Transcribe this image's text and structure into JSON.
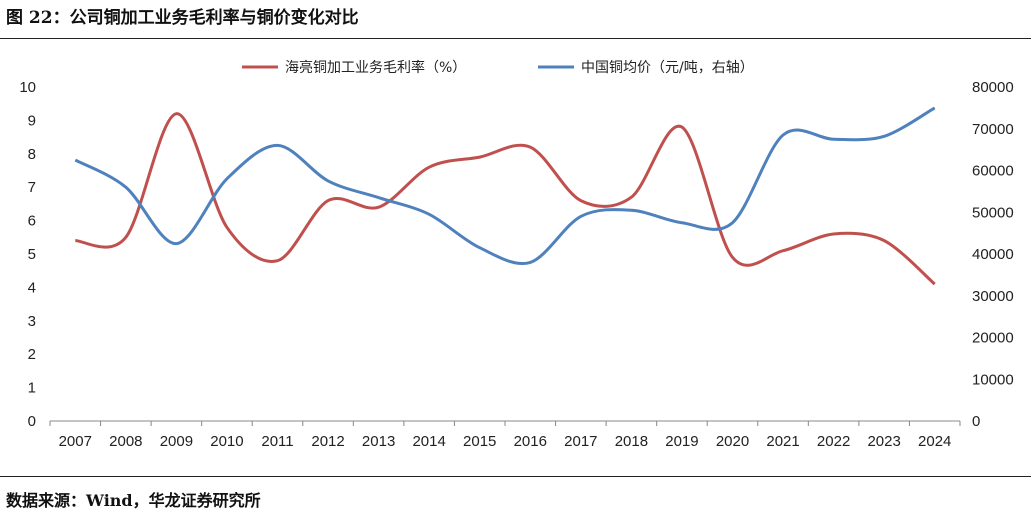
{
  "header": {
    "title": "图 22：公司铜加工业务毛利率与铜价变化对比"
  },
  "footer": {
    "source": "数据来源：Wind，华龙证券研究所"
  },
  "chart_data": {
    "type": "line",
    "x": [
      "2007",
      "2008",
      "2009",
      "2010",
      "2011",
      "2012",
      "2013",
      "2014",
      "2015",
      "2016",
      "2017",
      "2018",
      "2019",
      "2020",
      "2021",
      "2022",
      "2023",
      "2024"
    ],
    "series": [
      {
        "name": "海亮铜加工业务毛利率（%）",
        "axis": "left",
        "color": "#C0504D",
        "values": [
          5.4,
          5.5,
          9.2,
          5.8,
          4.8,
          6.6,
          6.4,
          7.6,
          7.9,
          8.2,
          6.6,
          6.7,
          8.8,
          4.9,
          5.1,
          5.6,
          5.4,
          4.1
        ]
      },
      {
        "name": "中国铜均价（元/吨，右轴）",
        "axis": "right",
        "color": "#4F81BD",
        "values": [
          62500,
          56000,
          42500,
          58000,
          66000,
          57500,
          53500,
          49500,
          41500,
          38000,
          49000,
          50500,
          47500,
          47500,
          68500,
          67500,
          68200,
          75000
        ]
      }
    ],
    "left_axis": {
      "ylim": [
        0,
        10
      ],
      "ticks": [
        "0",
        "1",
        "2",
        "3",
        "4",
        "5",
        "6",
        "7",
        "8",
        "9",
        "10"
      ]
    },
    "right_axis": {
      "ylim": [
        0,
        80000
      ],
      "ticks": [
        "0",
        "10000",
        "20000",
        "30000",
        "40000",
        "50000",
        "60000",
        "70000",
        "80000"
      ]
    },
    "legend_position": "top"
  }
}
